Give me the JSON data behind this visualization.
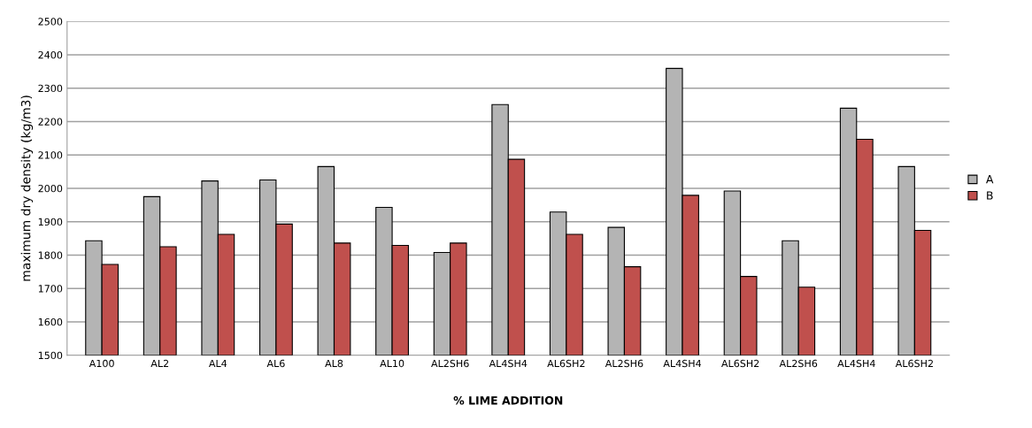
{
  "chart_data": {
    "type": "bar",
    "xlabel": "% LIME ADDITION",
    "ylabel": "maximum dry density (kg/m3)",
    "categories": [
      "A100",
      "AL2",
      "AL4",
      "AL6",
      "AL8",
      "AL10",
      "AL2SH6",
      "AL4SH4",
      "AL6SH2",
      "AL2SH6",
      "AL4SH4",
      "AL6SH2",
      "AL2SH6",
      "AL4SH4",
      "AL6SH2"
    ],
    "series": [
      {
        "name": "A",
        "color": "#b4b4b4",
        "values": [
          1843,
          1975,
          2022,
          2025,
          2065,
          1943,
          1808,
          2251,
          1929,
          1883,
          2359,
          1992,
          1843,
          2240,
          2065
        ]
      },
      {
        "name": "B",
        "color": "#c0504d",
        "values": [
          1772,
          1825,
          1862,
          1893,
          1836,
          1829,
          1836,
          2087,
          1862,
          1765,
          1979,
          1736,
          1704,
          2147,
          1874
        ]
      }
    ],
    "ylim": [
      1500,
      2500
    ],
    "yticks": [
      1500,
      1600,
      1700,
      1800,
      1900,
      2000,
      2100,
      2200,
      2300,
      2400,
      2500
    ],
    "grid": "y",
    "legend": "right"
  }
}
